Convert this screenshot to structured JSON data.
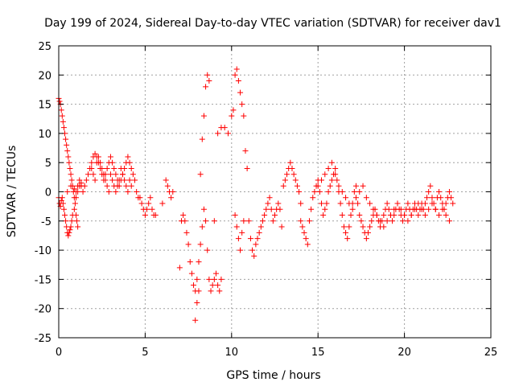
{
  "chart_data": {
    "type": "scatter",
    "title": "Day 199 of 2024, Sidereal Day-to-day VTEC variation (SDTVAR) for receiver dav1",
    "xlabel": "GPS time / hours",
    "ylabel": "SDTVAR / TECUs",
    "xlim": [
      0,
      25
    ],
    "ylim": [
      -25,
      25
    ],
    "xticks": [
      0,
      5,
      10,
      15,
      20,
      25
    ],
    "xtick_labels": [
      "0",
      "5",
      "10",
      "15",
      "20",
      "25"
    ],
    "yticks": [
      -25,
      -20,
      -15,
      -10,
      -5,
      0,
      5,
      10,
      15,
      20,
      25
    ],
    "ytick_labels": [
      "-25",
      "-20",
      "-15",
      "-10",
      "-5",
      "0",
      "5",
      "10",
      "15",
      "20",
      "25"
    ],
    "grid": true,
    "marker": "+",
    "series_color": "#ff0000",
    "series": [
      {
        "name": "SDTVAR",
        "x": [
          0.0,
          0.05,
          0.1,
          0.15,
          0.2,
          0.25,
          0.3,
          0.35,
          0.4,
          0.45,
          0.5,
          0.55,
          0.6,
          0.65,
          0.7,
          0.75,
          0.8,
          0.85,
          0.9,
          0.95,
          1.0,
          1.05,
          1.1,
          0.0,
          0.05,
          0.1,
          0.15,
          0.2,
          0.25,
          0.3,
          0.35,
          0.4,
          0.45,
          0.5,
          0.55,
          0.6,
          0.65,
          0.7,
          0.75,
          0.8,
          0.9,
          1.0,
          1.1,
          1.2,
          1.3,
          0.5,
          0.7,
          0.9,
          1.0,
          1.1,
          1.2,
          1.3,
          1.4,
          1.5,
          1.6,
          1.7,
          1.8,
          1.9,
          2.0,
          2.1,
          2.2,
          2.3,
          2.4,
          2.5,
          2.6,
          2.7,
          2.8,
          2.9,
          3.0,
          3.1,
          3.2,
          3.3,
          3.4,
          3.5,
          3.6,
          3.7,
          3.8,
          3.9,
          4.0,
          4.1,
          4.2,
          4.3,
          4.4,
          4.5,
          4.6,
          1.9,
          2.0,
          2.1,
          2.2,
          2.3,
          2.4,
          2.5,
          2.6,
          2.7,
          2.8,
          2.9,
          3.0,
          3.1,
          3.2,
          3.3,
          3.4,
          3.5,
          3.6,
          3.7,
          3.8,
          3.9,
          4.0,
          4.1,
          4.2,
          4.7,
          4.8,
          4.9,
          5.0,
          5.1,
          5.2,
          5.3,
          5.4,
          5.5,
          5.6,
          6.0,
          6.2,
          6.3,
          6.4,
          6.5,
          6.6,
          7.0,
          7.1,
          7.2,
          7.3,
          7.4,
          7.5,
          7.6,
          7.7,
          7.8,
          7.9,
          8.0,
          8.1,
          8.2,
          8.3,
          8.4,
          8.5,
          8.6,
          8.7,
          8.8,
          8.9,
          9.0,
          9.1,
          9.2,
          9.3,
          9.4,
          7.9,
          8.0,
          8.1,
          8.2,
          8.3,
          8.4,
          8.5,
          8.6,
          8.7,
          9.0,
          9.2,
          9.4,
          9.6,
          9.8,
          10.0,
          10.1,
          10.2,
          10.3,
          10.4,
          10.5,
          10.6,
          10.7,
          10.8,
          10.9,
          11.0,
          11.1,
          11.2,
          11.3,
          11.4,
          11.5,
          11.6,
          11.7,
          11.8,
          11.9,
          12.0,
          12.1,
          12.2,
          12.3,
          12.4,
          12.5,
          12.6,
          12.7,
          12.8,
          12.9,
          13.0,
          13.1,
          13.2,
          13.3,
          13.4,
          13.5,
          13.6,
          13.7,
          13.8,
          13.9,
          14.0,
          10.2,
          10.3,
          10.4,
          10.5,
          10.6,
          10.7,
          14.0,
          14.1,
          14.2,
          14.3,
          14.4,
          14.5,
          14.6,
          14.7,
          14.8,
          14.9,
          15.0,
          15.1,
          15.2,
          15.3,
          15.4,
          15.5,
          15.6,
          15.7,
          15.8,
          15.9,
          16.0,
          16.1,
          16.2,
          16.3,
          16.4,
          16.5,
          16.6,
          16.7,
          16.8,
          16.9,
          17.0,
          17.1,
          17.2,
          17.3,
          17.4,
          17.5,
          17.6,
          17.7,
          17.8,
          17.9,
          18.0,
          18.1,
          18.2,
          18.3,
          18.4,
          18.5,
          18.6,
          18.7,
          18.8,
          18.9,
          19.0,
          19.1,
          19.2,
          19.3,
          19.4,
          19.5,
          19.6,
          19.7,
          19.8,
          19.9,
          20.0,
          20.1,
          20.2,
          20.3,
          20.4,
          20.5,
          20.6,
          20.7,
          20.8,
          20.9,
          21.0,
          21.1,
          21.2,
          21.3,
          21.4,
          21.5,
          21.6,
          21.7,
          21.8,
          21.9,
          22.0,
          22.1,
          22.2,
          22.3,
          22.4,
          22.5,
          22.6,
          22.7,
          22.8,
          15.0,
          15.2,
          15.4,
          15.6,
          15.8,
          16.0,
          16.2,
          16.4,
          16.6,
          16.8,
          17.0,
          17.2,
          17.4,
          17.6,
          17.8,
          18.0,
          18.2,
          18.4,
          18.6,
          18.8,
          19.0,
          19.2,
          19.4,
          19.6,
          19.8,
          20.0,
          20.2,
          20.4,
          20.6,
          20.8,
          21.0,
          21.2,
          21.4,
          21.6,
          21.8,
          22.0,
          22.2,
          22.4,
          22.6
        ],
        "y": [
          16,
          15.5,
          15,
          14,
          13,
          12,
          11,
          10,
          9,
          8,
          7,
          6,
          5,
          4,
          3,
          2,
          1,
          0,
          -1,
          -2,
          -4,
          -5,
          -6,
          -1,
          -2,
          -2.5,
          -1.5,
          -1,
          -2,
          -3,
          -4,
          -5,
          -6,
          -7,
          -7.5,
          -7,
          -6.5,
          -6,
          -5,
          -4,
          -3,
          -1,
          0,
          1,
          1.5,
          0,
          1,
          0.5,
          0,
          1,
          2,
          1,
          0,
          1,
          2,
          3,
          4,
          5,
          6,
          6.5,
          6,
          5,
          4,
          3,
          2,
          3,
          4,
          5,
          6,
          5,
          4,
          3,
          2,
          1,
          2,
          3,
          4,
          5,
          6,
          5,
          4,
          3,
          2,
          0,
          -1,
          4,
          3,
          2,
          5,
          6,
          5,
          4,
          3,
          2,
          1,
          0,
          3,
          2,
          1,
          0,
          1,
          2,
          4,
          3,
          2,
          1,
          0,
          2,
          1,
          -1,
          -2,
          -3,
          -4,
          -3,
          -2,
          -1,
          -3,
          -4,
          -4,
          -2,
          2,
          1,
          0,
          -1,
          0,
          -13,
          -5,
          -4,
          -5,
          -7,
          -9,
          -12,
          -14,
          -16,
          -17,
          -15,
          -12,
          -9,
          -6,
          -3,
          -5,
          -10,
          -15,
          -17,
          -16,
          -15,
          -14,
          -16,
          -17,
          -15,
          -22,
          -19,
          -17,
          3,
          9,
          13,
          18,
          20,
          19,
          -5,
          10,
          11,
          11,
          10,
          13,
          14,
          20,
          21,
          19,
          17,
          15,
          13,
          7,
          4,
          -5,
          -8,
          -10,
          -11,
          -9,
          -8,
          -7,
          -6,
          -5,
          -4,
          -3,
          -2,
          -1,
          -3,
          -5,
          -4,
          -3,
          -2,
          -3,
          -6,
          1,
          2,
          3,
          4,
          5,
          4,
          3,
          2,
          1,
          0,
          -2,
          -4,
          -6,
          -8,
          -10,
          -7,
          -5,
          -5,
          -6,
          -7,
          -8,
          -9,
          -5,
          -3,
          -1,
          0,
          1,
          2,
          0,
          -2,
          -4,
          -3,
          -2,
          0,
          1,
          2,
          3,
          4,
          2,
          0,
          -2,
          -4,
          -6,
          -7,
          -8,
          -6,
          -4,
          -2,
          0,
          1,
          -2,
          -4,
          -5,
          -6,
          -7,
          -8,
          -7,
          -6,
          -5,
          -4,
          -3,
          -4,
          -5,
          -6,
          -5,
          -4,
          -3,
          -2,
          -3,
          -4,
          -5,
          -4,
          -3,
          -2,
          -3,
          -4,
          -5,
          -4,
          -3,
          -2,
          -3,
          -4,
          -3,
          -2,
          -3,
          -4,
          -3,
          -2,
          -3,
          -2,
          -1,
          0,
          1,
          -1,
          -2,
          -3,
          -1,
          0,
          -1,
          -2,
          -3,
          -2,
          -1,
          0,
          -1,
          -2,
          1,
          2,
          3,
          4,
          5,
          3,
          1,
          0,
          -1,
          -2,
          -3,
          -1,
          0,
          1,
          -1,
          -2,
          -3,
          -4,
          -5,
          -6,
          -5,
          -4,
          -3,
          -2,
          -3,
          -4,
          -5,
          -4,
          -3,
          -2,
          -3,
          -4,
          -3,
          -2,
          -3,
          -4,
          -3,
          -4,
          -5
        ]
      }
    ]
  }
}
